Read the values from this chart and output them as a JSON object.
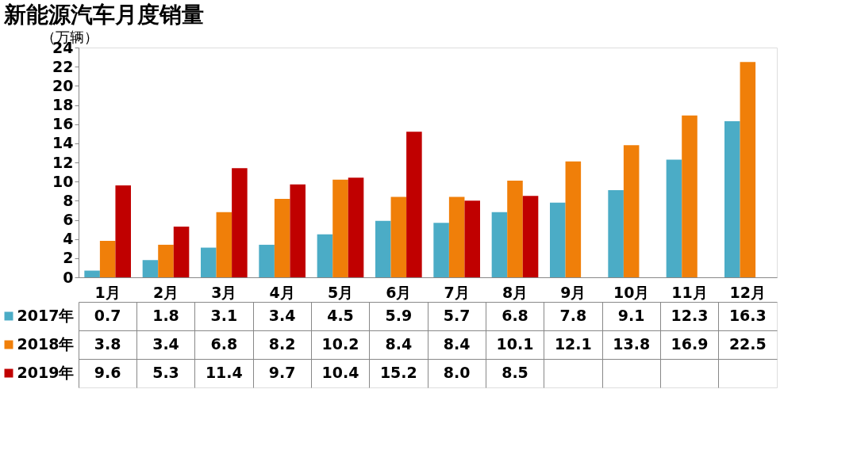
{
  "chart_data": {
    "type": "bar",
    "title": "新能源汽车月度销量",
    "ylabel": "（万辆）",
    "categories": [
      "1月",
      "2月",
      "3月",
      "4月",
      "5月",
      "6月",
      "7月",
      "8月",
      "9月",
      "10月",
      "11月",
      "12月"
    ],
    "series": [
      {
        "name": "2017年",
        "color": "#4bacc6",
        "values": [
          0.7,
          1.8,
          3.1,
          3.4,
          4.5,
          5.9,
          5.7,
          6.8,
          7.8,
          9.1,
          12.3,
          16.3
        ],
        "value_labels": [
          "0.7",
          "1.8",
          "3.1",
          "3.4",
          "4.5",
          "5.9",
          "5.7",
          "6.8",
          "7.8",
          "9.1",
          "12.3",
          "16.3"
        ]
      },
      {
        "name": "2018年",
        "color": "#f07f09",
        "values": [
          3.8,
          3.4,
          6.8,
          8.2,
          10.2,
          8.4,
          8.4,
          10.1,
          12.1,
          13.8,
          16.9,
          22.5
        ],
        "value_labels": [
          "3.8",
          "3.4",
          "6.8",
          "8.2",
          "10.2",
          "8.4",
          "8.4",
          "10.1",
          "12.1",
          "13.8",
          "16.9",
          "22.5"
        ]
      },
      {
        "name": "2019年",
        "color": "#c00000",
        "values": [
          9.6,
          5.3,
          11.4,
          9.7,
          10.4,
          15.2,
          8.0,
          8.5,
          null,
          null,
          null,
          null
        ],
        "value_labels": [
          "9.6",
          "5.3",
          "11.4",
          "9.7",
          "10.4",
          "15.2",
          "8.0",
          "8.5",
          null,
          null,
          null,
          null
        ]
      }
    ],
    "ylim": [
      0,
      24
    ],
    "yticks": [
      0,
      2,
      4,
      6,
      8,
      10,
      12,
      14,
      16,
      18,
      20,
      22,
      24
    ],
    "grid": false,
    "legend": "bottom"
  }
}
